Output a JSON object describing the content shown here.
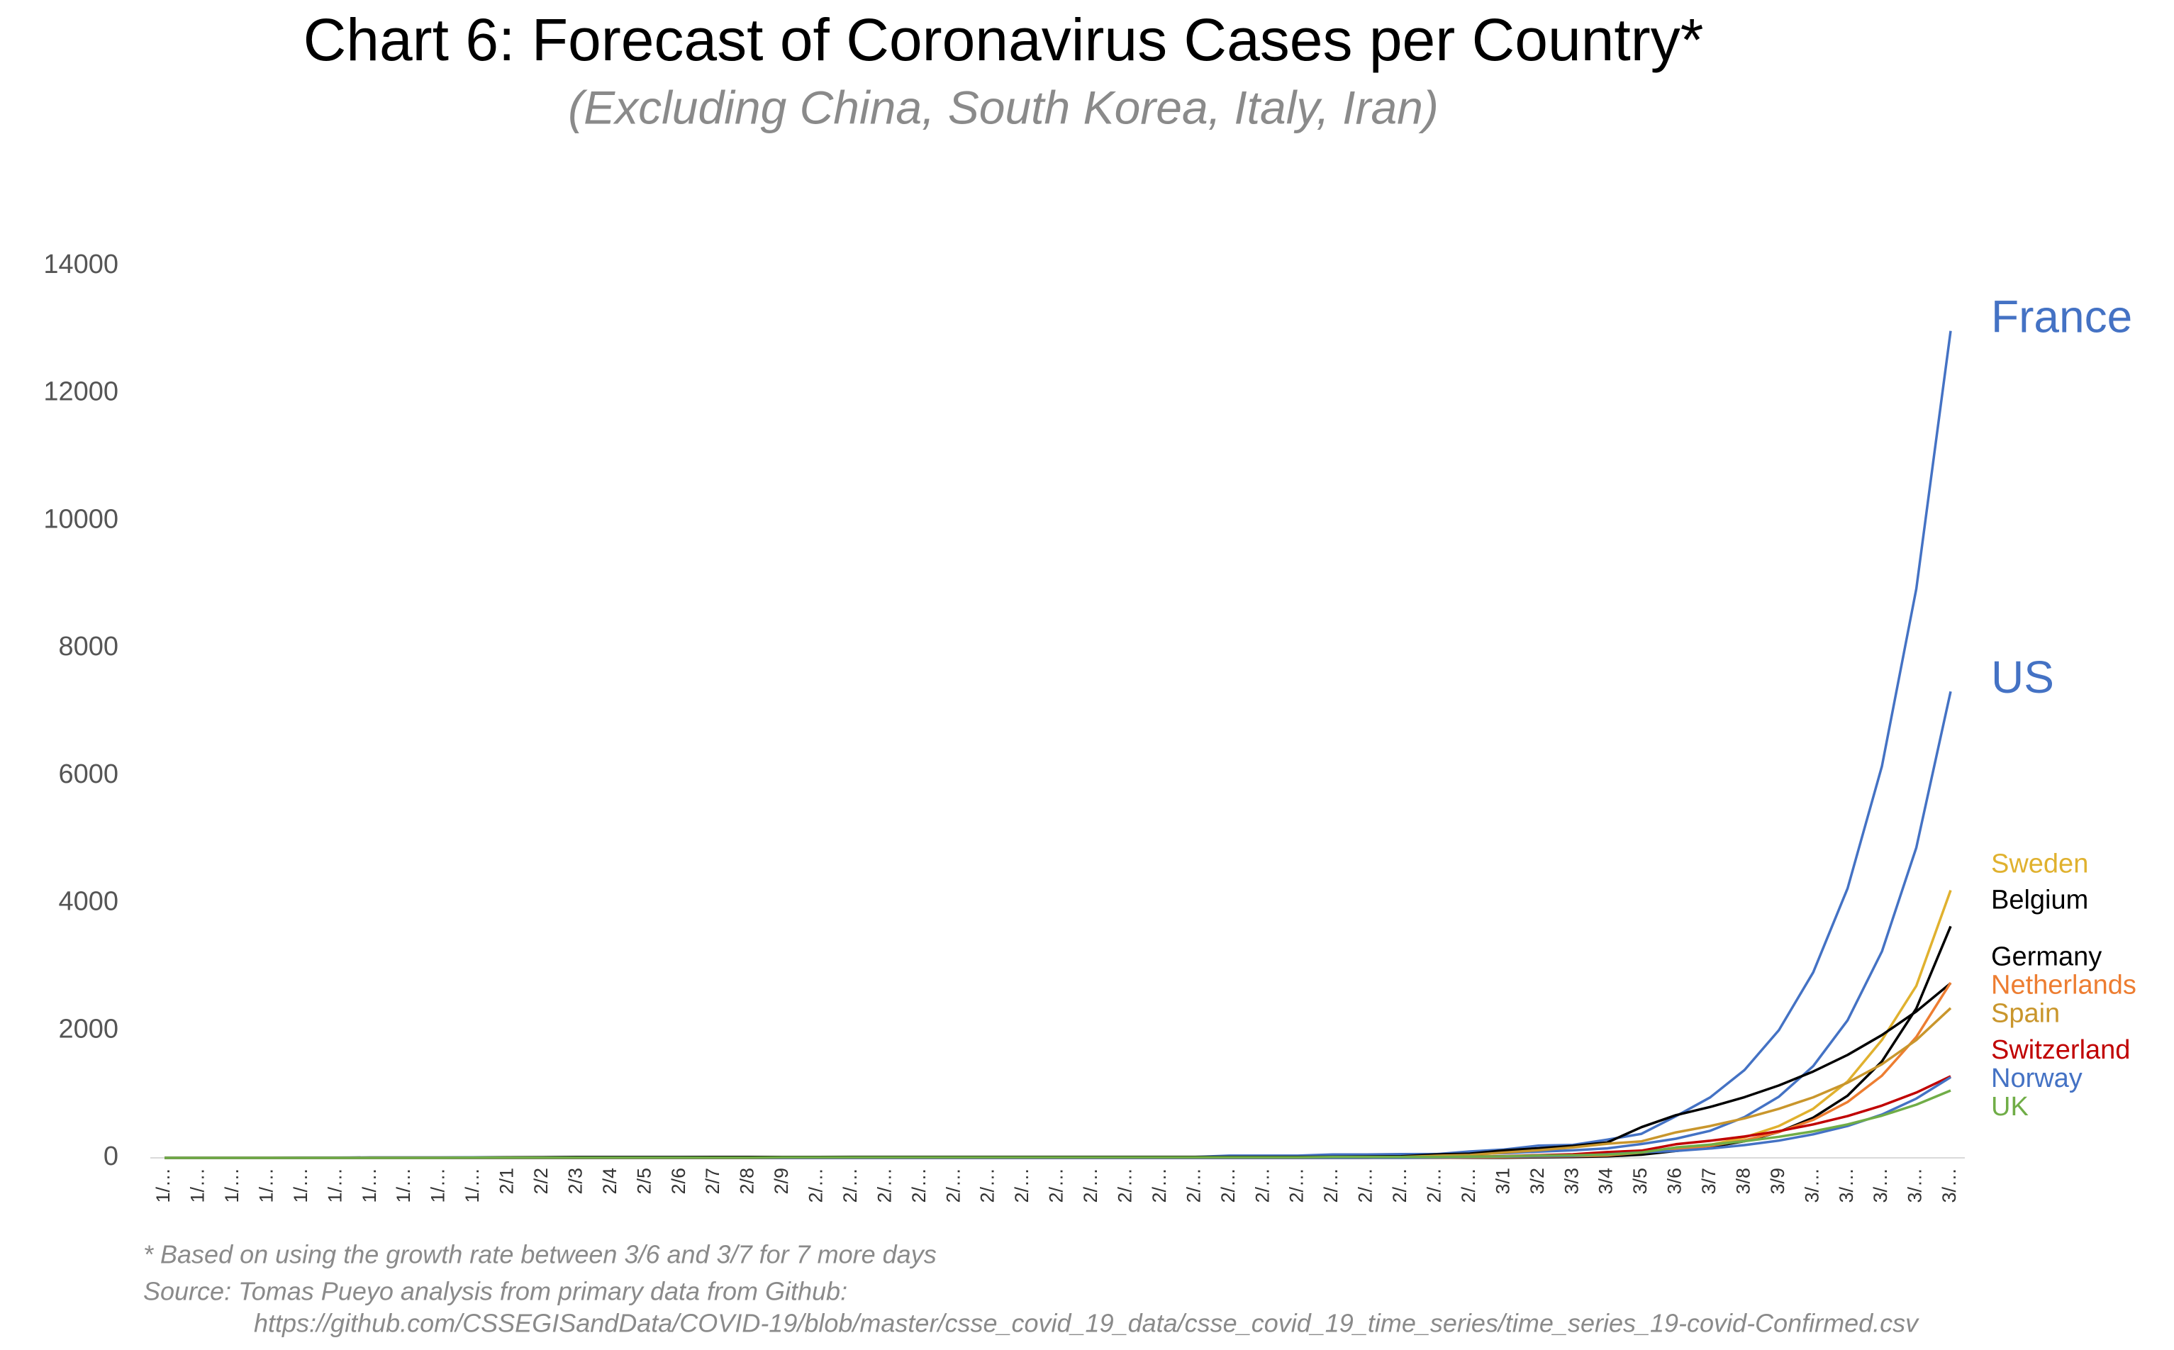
{
  "chart_data": {
    "type": "line",
    "title": "Chart 6: Forecast of Coronavirus Cases per Country*",
    "subtitle": "(Excluding China, South Korea, Italy, Iran)",
    "notes": [
      "* Based on using the growth rate between 3/6 and 3/7 for 7 more days",
      "Source: Tomas Pueyo analysis from primary data from Github:",
      "https://github.com/CSSEGISandData/COVID-19/blob/master/csse_covid_19_data/csse_covid_19_time_series/time_series_19-covid-Confirmed.csv"
    ],
    "categories": [
      "1/…",
      "1/…",
      "1/…",
      "1/…",
      "1/…",
      "1/…",
      "1/…",
      "1/…",
      "1/…",
      "1/…",
      "2/1",
      "2/2",
      "2/3",
      "2/4",
      "2/5",
      "2/6",
      "2/7",
      "2/8",
      "2/9",
      "2/…",
      "2/…",
      "2/…",
      "2/…",
      "2/…",
      "2/…",
      "2/…",
      "2/…",
      "2/…",
      "2/…",
      "2/…",
      "2/…",
      "2/…",
      "2/…",
      "2/…",
      "2/…",
      "2/…",
      "2/…",
      "2/…",
      "2/…",
      "3/1",
      "3/2",
      "3/3",
      "3/4",
      "3/5",
      "3/6",
      "3/7",
      "3/8",
      "3/9",
      "3/…",
      "3/…",
      "3/…",
      "3/…",
      "3/…"
    ],
    "ylim": [
      0,
      14000
    ],
    "yticks": [
      0,
      2000,
      4000,
      6000,
      8000,
      10000,
      12000,
      14000
    ],
    "grid": false,
    "series": [
      {
        "name": "France",
        "color": "#4472c4",
        "values": [
          0,
          0,
          2,
          3,
          3,
          3,
          4,
          5,
          5,
          5,
          6,
          6,
          6,
          6,
          6,
          6,
          6,
          11,
          11,
          11,
          11,
          11,
          11,
          11,
          12,
          12,
          12,
          12,
          12,
          12,
          12,
          12,
          12,
          12,
          12,
          18,
          38,
          57,
          100,
          130,
          191,
          204,
          285,
          377,
          653,
          949,
          1379,
          2004,
          2912,
          4231,
          6148,
          8933,
          12980
        ]
      },
      {
        "name": "US",
        "color": "#4472c4",
        "values": [
          1,
          1,
          2,
          2,
          5,
          5,
          5,
          5,
          5,
          7,
          8,
          8,
          11,
          11,
          11,
          11,
          11,
          11,
          11,
          11,
          12,
          12,
          13,
          13,
          13,
          13,
          13,
          13,
          13,
          13,
          15,
          35,
          35,
          35,
          53,
          53,
          59,
          60,
          62,
          74,
          98,
          118,
          149,
          217,
          300,
          425,
          640,
          960,
          1440,
          2160,
          3240,
          4870,
          7320
        ]
      },
      {
        "name": "Sweden",
        "color": "#e0b12e",
        "values": [
          0,
          0,
          0,
          0,
          0,
          0,
          0,
          0,
          0,
          1,
          1,
          1,
          1,
          1,
          1,
          1,
          1,
          1,
          1,
          1,
          1,
          1,
          1,
          1,
          1,
          1,
          1,
          1,
          1,
          1,
          1,
          1,
          1,
          1,
          1,
          2,
          7,
          7,
          12,
          14,
          15,
          21,
          35,
          94,
          137,
          205,
          320,
          500,
          770,
          1200,
          1850,
          2700,
          4200
        ]
      },
      {
        "name": "Belgium",
        "color": "#000000",
        "values": [
          0,
          0,
          0,
          0,
          0,
          0,
          0,
          0,
          0,
          0,
          0,
          0,
          0,
          1,
          1,
          1,
          1,
          1,
          1,
          1,
          1,
          1,
          1,
          1,
          1,
          1,
          1,
          1,
          1,
          1,
          1,
          1,
          1,
          1,
          1,
          1,
          1,
          1,
          1,
          1,
          8,
          13,
          23,
          50,
          109,
          169,
          262,
          406,
          630,
          976,
          1513,
          2345,
          3635
        ]
      },
      {
        "name": "Germany",
        "color": "#000000",
        "values": [
          0,
          0,
          0,
          0,
          0,
          1,
          4,
          4,
          4,
          5,
          8,
          10,
          12,
          12,
          12,
          12,
          13,
          13,
          14,
          14,
          16,
          16,
          16,
          16,
          16,
          16,
          16,
          16,
          16,
          16,
          16,
          16,
          16,
          16,
          18,
          21,
          26,
          53,
          66,
          117,
          150,
          188,
          240,
          482,
          670,
          799,
          953,
          1136,
          1355,
          1616,
          1927,
          2298,
          2741
        ]
      },
      {
        "name": "Netherlands",
        "color": "#ed7d31",
        "values": [
          0,
          0,
          0,
          0,
          0,
          0,
          0,
          0,
          0,
          0,
          0,
          0,
          0,
          0,
          0,
          0,
          0,
          0,
          0,
          0,
          0,
          0,
          0,
          0,
          0,
          0,
          0,
          0,
          0,
          0,
          0,
          0,
          0,
          0,
          0,
          0,
          1,
          1,
          6,
          10,
          18,
          24,
          38,
          82,
          128,
          188,
          276,
          406,
          597,
          877,
          1290,
          1896,
          2750
        ]
      },
      {
        "name": "Spain",
        "color": "#c9962c",
        "values": [
          0,
          0,
          0,
          0,
          0,
          0,
          0,
          0,
          0,
          0,
          1,
          1,
          1,
          1,
          1,
          1,
          1,
          1,
          1,
          2,
          2,
          2,
          2,
          2,
          2,
          2,
          2,
          2,
          2,
          2,
          2,
          2,
          2,
          2,
          6,
          13,
          15,
          32,
          45,
          84,
          120,
          165,
          222,
          259,
          400,
          500,
          620,
          770,
          950,
          1180,
          1470,
          1850,
          2350
        ]
      },
      {
        "name": "Switzerland",
        "color": "#c00000",
        "values": [
          0,
          0,
          0,
          0,
          0,
          0,
          0,
          0,
          0,
          0,
          0,
          0,
          0,
          0,
          0,
          0,
          0,
          0,
          0,
          0,
          0,
          0,
          0,
          0,
          0,
          0,
          0,
          0,
          0,
          0,
          0,
          0,
          0,
          0,
          1,
          1,
          8,
          8,
          18,
          27,
          42,
          56,
          90,
          114,
          214,
          268,
          335,
          420,
          525,
          655,
          820,
          1025,
          1280
        ]
      },
      {
        "name": "Norway",
        "color": "#4472c4",
        "values": [
          0,
          0,
          0,
          0,
          0,
          0,
          0,
          0,
          0,
          0,
          0,
          0,
          0,
          0,
          0,
          0,
          0,
          0,
          0,
          0,
          0,
          0,
          0,
          0,
          0,
          0,
          0,
          0,
          0,
          0,
          0,
          0,
          0,
          0,
          0,
          1,
          1,
          6,
          15,
          19,
          25,
          32,
          56,
          87,
          108,
          147,
          200,
          270,
          370,
          500,
          680,
          930,
          1265
        ]
      },
      {
        "name": "UK",
        "color": "#70ad47",
        "values": [
          0,
          0,
          0,
          0,
          0,
          0,
          0,
          0,
          0,
          2,
          2,
          2,
          2,
          2,
          2,
          2,
          2,
          2,
          8,
          8,
          8,
          9,
          9,
          9,
          9,
          9,
          9,
          9,
          9,
          9,
          9,
          9,
          9,
          9,
          13,
          13,
          13,
          15,
          20,
          23,
          36,
          40,
          51,
          85,
          164,
          207,
          261,
          330,
          416,
          525,
          662,
          835,
          1057
        ]
      }
    ]
  }
}
